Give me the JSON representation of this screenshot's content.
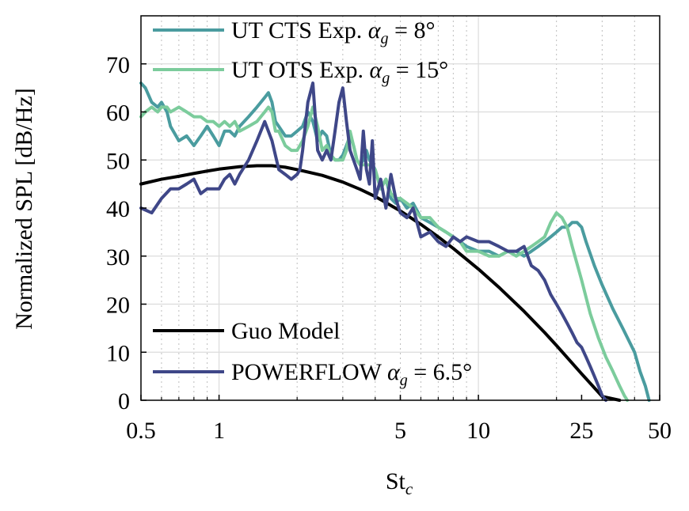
{
  "chart_data": {
    "type": "line",
    "title": "",
    "xlabel": "St",
    "xlabel_sub": "c",
    "ylabel": "Normalized SPL [dB/Hz]",
    "xscale": "log",
    "xlim": [
      0.5,
      50
    ],
    "ylim": [
      0,
      80
    ],
    "grid": true,
    "minor_grid_x": true,
    "x_ticks": [
      0.5,
      1,
      5,
      10,
      25,
      50
    ],
    "x_tick_labels": [
      "0.5",
      "1",
      "5",
      "10",
      "25",
      "50"
    ],
    "y_ticks": [
      0,
      10,
      20,
      30,
      40,
      50,
      60,
      70
    ],
    "y_tick_labels": [
      "0",
      "10",
      "20",
      "30",
      "40",
      "50",
      "60",
      "70"
    ],
    "legends": [
      {
        "placement": "top-left",
        "entries": [
          {
            "series": 0,
            "text": "UT CTS Exp. ",
            "math": "α",
            "sub": "g",
            "eq": " = 8°"
          },
          {
            "series": 1,
            "text": "UT OTS Exp. ",
            "math": "α",
            "sub": "g",
            "eq": " = 15°"
          }
        ]
      },
      {
        "placement": "bottom-left",
        "entries": [
          {
            "series": 2,
            "text": "Guo Model",
            "math": "",
            "sub": "",
            "eq": ""
          },
          {
            "series": 3,
            "text": "POWERFLOW ",
            "math": "α",
            "sub": "g",
            "eq": " = 6.5°"
          }
        ]
      }
    ],
    "series": [
      {
        "name": "UT CTS Exp. αg = 8°",
        "color": "#4a9c9f",
        "x": [
          0.5,
          0.52,
          0.55,
          0.58,
          0.6,
          0.63,
          0.65,
          0.7,
          0.75,
          0.8,
          0.85,
          0.9,
          0.95,
          1.0,
          1.05,
          1.1,
          1.15,
          1.2,
          1.3,
          1.4,
          1.5,
          1.55,
          1.6,
          1.65,
          1.7,
          1.8,
          1.9,
          2.0,
          2.1,
          2.2,
          2.3,
          2.4,
          2.5,
          2.6,
          2.7,
          2.8,
          2.9,
          3.0,
          3.1,
          3.2,
          3.3,
          3.4,
          3.5,
          3.6,
          3.7,
          3.8,
          4.0,
          4.2,
          4.4,
          4.6,
          4.8,
          5.0,
          5.3,
          5.6,
          6.0,
          6.5,
          7.0,
          7.5,
          8.0,
          8.5,
          9.0,
          10.0,
          11.0,
          12.0,
          13.0,
          14.0,
          15.0,
          16.0,
          17.0,
          18.0,
          19.0,
          20.0,
          21.0,
          22.0,
          23.0,
          24.0,
          25.0,
          26.0,
          28.0,
          30.0,
          33.0,
          36.0,
          40.0,
          42.0,
          44.0,
          45.0,
          45.5
        ],
        "y": [
          66,
          65,
          62,
          61,
          62,
          60,
          57,
          54,
          55,
          53,
          55,
          57,
          55,
          53,
          56,
          56,
          55,
          57,
          59,
          61,
          63,
          64,
          62,
          58,
          57,
          55,
          55,
          56,
          57,
          60,
          58,
          54,
          56,
          55,
          51,
          50,
          50,
          51,
          53,
          55,
          53,
          50,
          49,
          50,
          52,
          50,
          48,
          44,
          46,
          42,
          41,
          42,
          40,
          41,
          38,
          37,
          36,
          35,
          34,
          33,
          32,
          31,
          31,
          30,
          31,
          31,
          30,
          31,
          32,
          33,
          34,
          35,
          36,
          36,
          37,
          37,
          36,
          33,
          28,
          24,
          19,
          15,
          10,
          6,
          3,
          1,
          0
        ]
      },
      {
        "name": "UT OTS Exp. αg = 15°",
        "color": "#7ccc9c",
        "x": [
          0.5,
          0.52,
          0.55,
          0.58,
          0.6,
          0.63,
          0.65,
          0.7,
          0.75,
          0.8,
          0.85,
          0.9,
          0.95,
          1.0,
          1.05,
          1.1,
          1.15,
          1.2,
          1.3,
          1.4,
          1.5,
          1.55,
          1.6,
          1.65,
          1.7,
          1.8,
          1.9,
          2.0,
          2.1,
          2.2,
          2.3,
          2.4,
          2.5,
          2.6,
          2.7,
          2.8,
          2.9,
          3.0,
          3.1,
          3.2,
          3.3,
          3.4,
          3.5,
          3.6,
          3.7,
          3.8,
          4.0,
          4.2,
          4.4,
          4.6,
          4.8,
          5.0,
          5.3,
          5.6,
          6.0,
          6.5,
          7.0,
          7.5,
          8.0,
          8.5,
          9.0,
          10.0,
          11.0,
          12.0,
          13.0,
          14.0,
          15.0,
          16.0,
          17.0,
          18.0,
          19.0,
          20.0,
          21.0,
          22.0,
          23.0,
          25.0,
          27.0,
          29.0,
          31.0,
          33.0,
          35.0,
          36.5,
          37.5
        ],
        "y": [
          59,
          60,
          61,
          60,
          61,
          61,
          60,
          61,
          60,
          59,
          59,
          58,
          58,
          57,
          58,
          57,
          58,
          56,
          57,
          58,
          60,
          61,
          60,
          56,
          56,
          53,
          52,
          52,
          54,
          57,
          61,
          57,
          52,
          53,
          51,
          50,
          50,
          50,
          52,
          56,
          53,
          50,
          49,
          49,
          49,
          49,
          48,
          44,
          46,
          43,
          42,
          42,
          41,
          40,
          38,
          38,
          36,
          35,
          34,
          33,
          31,
          31,
          30,
          30,
          31,
          30,
          31,
          32,
          33,
          34,
          37,
          39,
          38,
          36,
          32,
          25,
          18,
          13,
          9,
          6,
          3,
          1,
          0
        ]
      },
      {
        "name": "Guo Model",
        "color": "#000000",
        "x": [
          0.5,
          0.6,
          0.7,
          0.8,
          0.9,
          1.0,
          1.2,
          1.4,
          1.6,
          1.8,
          2.0,
          2.5,
          3.0,
          3.5,
          4.0,
          5.0,
          6.0,
          7.0,
          8.0,
          10.0,
          12.0,
          15.0,
          18.0,
          20.0,
          25.0,
          30.0,
          35.0
        ],
        "y": [
          45,
          46,
          46.6,
          47.2,
          47.7,
          48.1,
          48.6,
          48.8,
          48.8,
          48.5,
          48.0,
          46.8,
          45.4,
          43.9,
          42.4,
          39.4,
          36.6,
          34.0,
          31.6,
          27.3,
          23.5,
          18.5,
          14.1,
          11.4,
          5.5,
          0.8,
          0
        ]
      },
      {
        "name": "POWERFLOW αg = 6.5°",
        "color": "#3f4788",
        "x": [
          0.5,
          0.55,
          0.6,
          0.65,
          0.7,
          0.75,
          0.8,
          0.85,
          0.9,
          0.95,
          1.0,
          1.05,
          1.1,
          1.15,
          1.2,
          1.3,
          1.4,
          1.5,
          1.6,
          1.7,
          1.8,
          1.9,
          2.0,
          2.05,
          2.1,
          2.2,
          2.3,
          2.4,
          2.5,
          2.6,
          2.7,
          2.8,
          2.9,
          3.0,
          3.1,
          3.2,
          3.3,
          3.4,
          3.5,
          3.6,
          3.7,
          3.8,
          3.9,
          4.0,
          4.2,
          4.4,
          4.6,
          4.8,
          5.0,
          5.3,
          5.6,
          6.0,
          6.5,
          7.0,
          7.5,
          8.0,
          8.5,
          9.0,
          10.0,
          11.0,
          12.0,
          13.0,
          14.0,
          15.0,
          16.0,
          17.0,
          18.0,
          19.0,
          20.0,
          21.0,
          22.0,
          23.0,
          24.0,
          25.0,
          26.0,
          27.0,
          28.0,
          29.0,
          30.0,
          31.0
        ],
        "y": [
          40,
          39,
          42,
          44,
          44,
          45,
          46,
          43,
          44,
          44,
          44,
          46,
          47,
          45,
          47,
          50,
          54,
          58,
          54,
          48,
          47,
          46,
          47,
          48,
          52,
          62,
          66,
          52,
          50,
          52,
          50,
          56,
          62,
          65,
          58,
          52,
          50,
          48,
          46,
          56,
          48,
          45,
          54,
          42,
          46,
          40,
          47,
          42,
          39,
          38,
          40,
          34,
          35,
          33,
          32,
          34,
          33,
          34,
          33,
          33,
          32,
          31,
          31,
          32,
          28,
          27,
          25,
          22,
          20,
          18,
          16,
          14,
          12,
          11,
          9,
          7,
          5,
          3,
          1,
          0
        ]
      }
    ]
  }
}
